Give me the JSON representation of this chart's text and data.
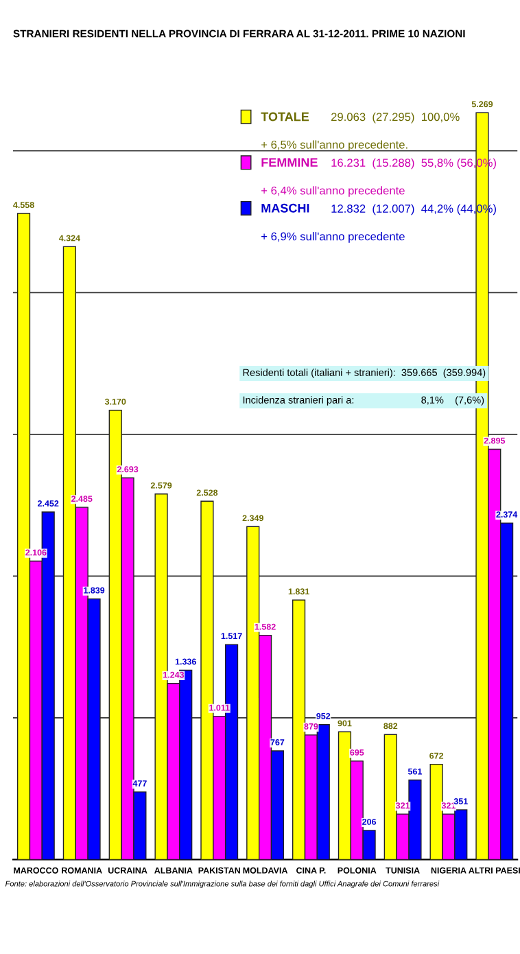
{
  "chart_data": {
    "type": "bar",
    "title": "STRANIERI RESIDENTI NELLA PROVINCIA DI FERRARA AL 31-12-2011. PRIME 10 NAZIONI",
    "categories": [
      "MAROCCO",
      "ROMANIA",
      "UCRAINA",
      "ALBANIA",
      "PAKISTAN",
      "MOLDAVIA",
      "CINA P.",
      "POLONIA",
      "TUNISIA",
      "NIGERIA",
      "ALTRI PAESI"
    ],
    "series": [
      {
        "name": "TOTALE",
        "color": "#ffff00",
        "values": [
          4558,
          4324,
          3170,
          2579,
          2528,
          2349,
          1831,
          901,
          882,
          672,
          5269
        ],
        "value_labels": [
          "4.558",
          "4.324",
          "3.170",
          "2.579",
          "2.528",
          "2.349",
          "1.831",
          "901",
          "882",
          "672",
          "5.269"
        ]
      },
      {
        "name": "FEMMINE",
        "color": "#ff00ff",
        "values": [
          2106,
          2485,
          2693,
          1243,
          1011,
          1582,
          879,
          695,
          321,
          321,
          2895
        ],
        "value_labels": [
          "2.106",
          "2.485",
          "2.693",
          "1.243",
          "1.011",
          "1.582",
          "879",
          "695",
          "321",
          "321",
          "2.895"
        ]
      },
      {
        "name": "MASCHI",
        "color": "#0000ff",
        "values": [
          2452,
          1839,
          477,
          1336,
          1517,
          767,
          952,
          206,
          561,
          351,
          2374
        ],
        "value_labels": [
          "2.452",
          "1.839",
          "477",
          "1.336",
          "1.517",
          "767",
          "952",
          "206",
          "561",
          "351",
          "2.374"
        ]
      }
    ],
    "yticks": [
      {
        "value": 0,
        "label": null
      },
      {
        "value": 1000,
        "label": null
      },
      {
        "value": 2000,
        "label": null
      },
      {
        "value": 3000,
        "label": null
      },
      {
        "value": 4000,
        "label": null
      },
      {
        "value": 5000,
        "label": null
      }
    ],
    "tick_labels": "x",
    "grid": "y",
    "legend": "top",
    "annotations": [
      "29.063  (27.295)  100,0%",
      "+ 6,5% sull'anno precedente.",
      "16.231  (15.288)  55,8% (56,0%)",
      "+ 6,4% sull'anno precedente",
      "12.832  (12.007)  44,2% (44,0%)",
      "+ 6,9% sull'anno precedente",
      "Residenti totali (italiani + stranieri):  359.665  (359.994)",
      "Incidenza stranieri pari a:                        8,1%    (7,6%)",
      "Fonte: elaborazioni dell'Osservatorio Provinciale sull'Immigrazione sulla base dei forniti dagli Uffici Anagrafe dei Comuni ferraresi"
    ]
  }
}
